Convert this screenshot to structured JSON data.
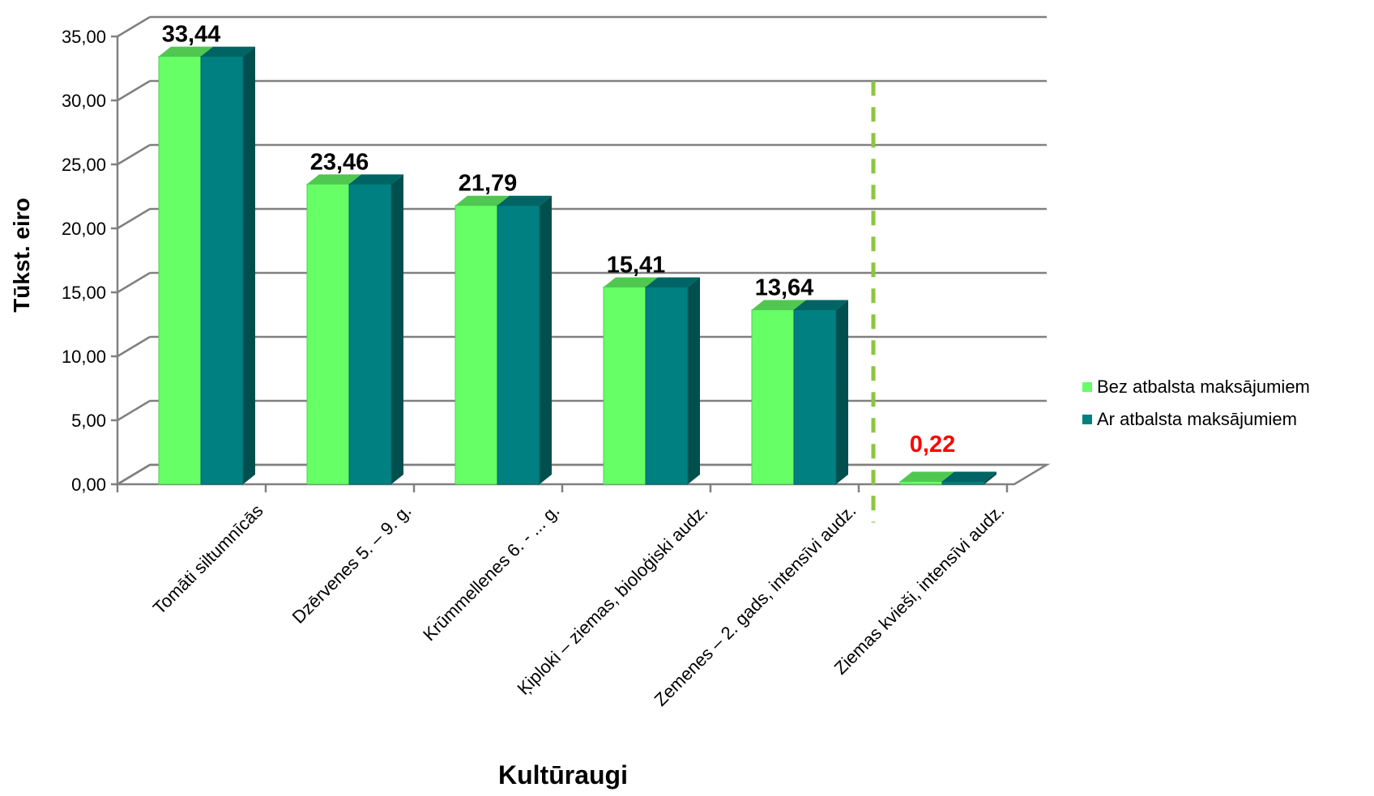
{
  "chart_data": {
    "type": "bar",
    "title": "",
    "xlabel": "Kultūraugi",
    "ylabel": "Tūkst. eiro",
    "ylim": [
      0,
      35
    ],
    "ytick_step": 5,
    "ytick_labels": [
      "0,00",
      "5,00",
      "10,00",
      "15,00",
      "20,00",
      "25,00",
      "30,00",
      "35,00"
    ],
    "grid": true,
    "three_d": true,
    "legend_position": "right",
    "categories": [
      "Tomāti siltumnīcās",
      "Dzērvenes 5. – 9. g.",
      "Krūmmellenes 6. - ... g.",
      "Ķiploki – ziemas, bioloģiski audz.",
      "Zemenes – 2. gads, intensīvi audz.",
      "Ziemas kvieši, intensīvi audz."
    ],
    "series": [
      {
        "name": "Bez atbalsta maksājumiem",
        "color": "#66FF66",
        "values": [
          33.44,
          23.46,
          21.79,
          15.41,
          13.64,
          0.22
        ]
      },
      {
        "name": "Ar atbalsta maksājumiem",
        "color": "#008080",
        "values": [
          33.44,
          23.46,
          21.79,
          15.41,
          13.64,
          0.22
        ]
      }
    ],
    "data_labels": [
      {
        "text": "33,44",
        "color": "#000000"
      },
      {
        "text": "23,46",
        "color": "#000000"
      },
      {
        "text": "21,79",
        "color": "#000000"
      },
      {
        "text": "15,41",
        "color": "#000000"
      },
      {
        "text": "13,64",
        "color": "#000000"
      },
      {
        "text": "0,22",
        "color": "#FF0000"
      }
    ],
    "divider": {
      "after_category_index": 4,
      "color": "#8CC63F",
      "style": "dashed"
    }
  }
}
